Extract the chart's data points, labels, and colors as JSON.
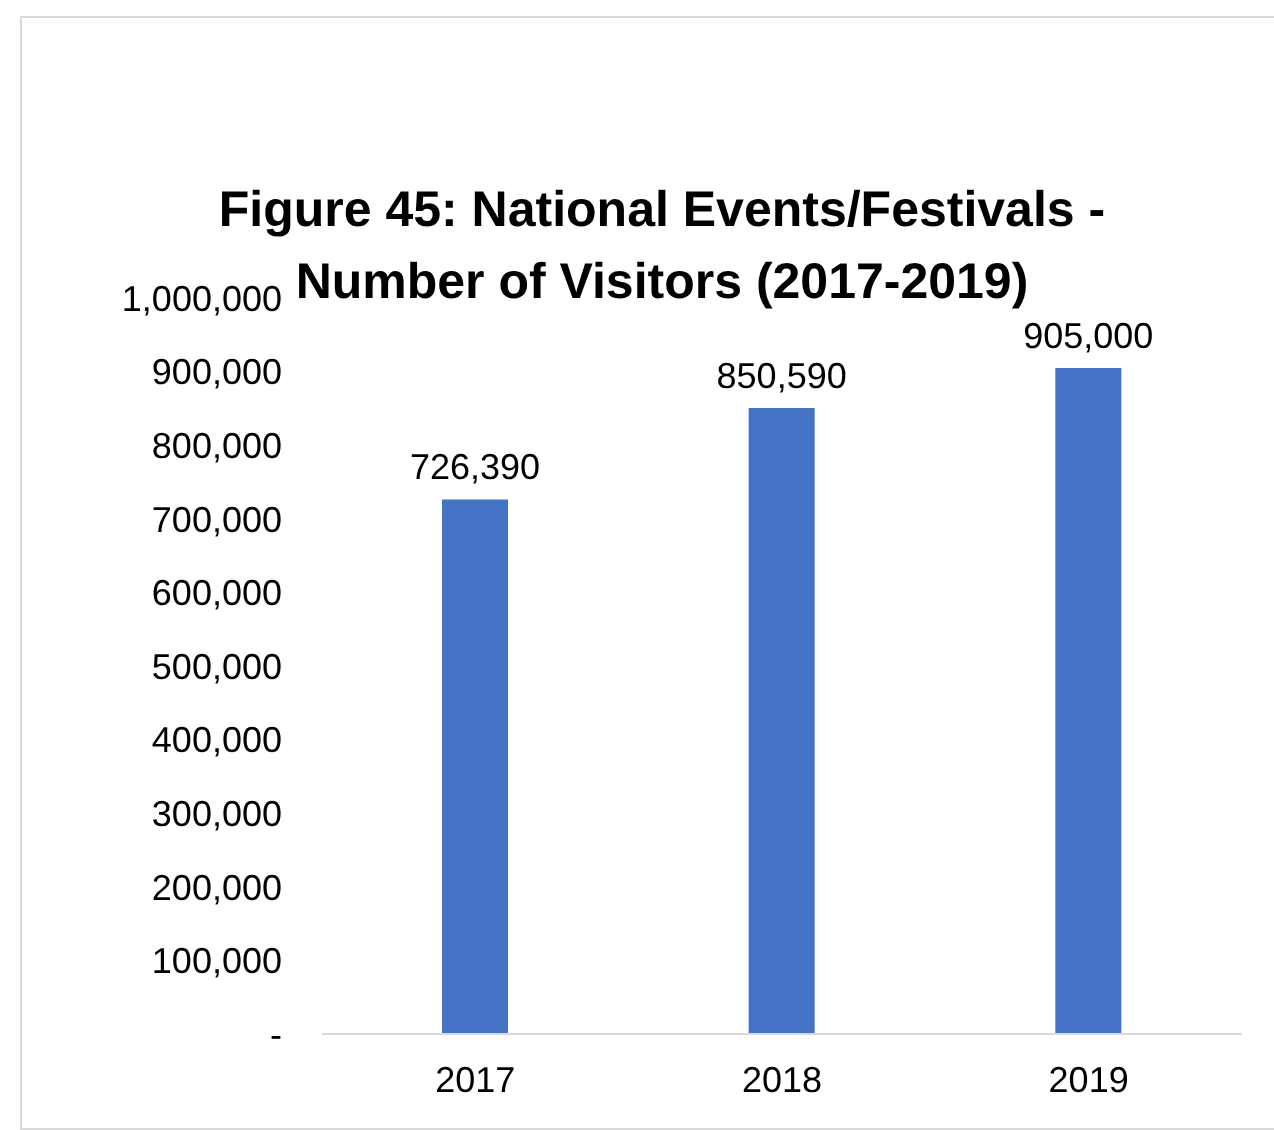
{
  "chart_data": {
    "type": "bar",
    "title": "Figure 45: National Events/Festivals - Number of Visitors (2017-2019)",
    "categories": [
      "2017",
      "2018",
      "2019"
    ],
    "values": [
      726390,
      850590,
      905000
    ],
    "value_labels": [
      "726,390",
      "850,590",
      "905,000"
    ],
    "color": "#4472c4",
    "ylim": [
      0,
      1000000
    ],
    "yticks": [
      {
        "value": 0,
        "label": "-"
      },
      {
        "value": 100000,
        "label": "100,000"
      },
      {
        "value": 200000,
        "label": "200,000"
      },
      {
        "value": 300000,
        "label": "300,000"
      },
      {
        "value": 400000,
        "label": "400,000"
      },
      {
        "value": 500000,
        "label": "500,000"
      },
      {
        "value": 600000,
        "label": "600,000"
      },
      {
        "value": 700000,
        "label": "700,000"
      },
      {
        "value": 800000,
        "label": "800,000"
      },
      {
        "value": 900000,
        "label": "900,000"
      },
      {
        "value": 1000000,
        "label": "1,000,000"
      }
    ],
    "grid": false,
    "legend": false
  }
}
